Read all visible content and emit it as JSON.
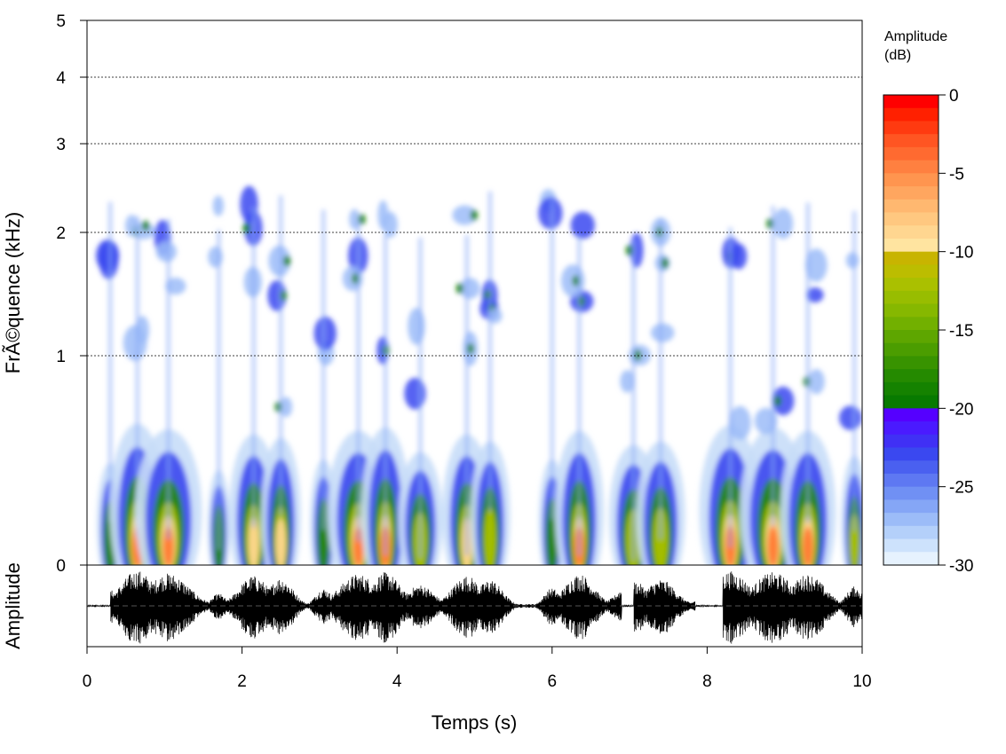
{
  "chart_data": [
    {
      "type": "heatmap",
      "subtype": "spectrogram",
      "ylabel": "FrÃ©quence (kHz)",
      "y_scale": "nonlinear (expanded at low frequencies)",
      "ylim": [
        0,
        5
      ],
      "xlim": [
        0,
        10
      ],
      "x_ticks": [
        "0",
        "2",
        "4",
        "6",
        "8",
        "10"
      ],
      "x_tick_values": [
        0,
        2,
        4,
        6,
        8,
        10
      ],
      "y_ticks": [
        "0",
        "1",
        "2",
        "3",
        "4",
        "5"
      ],
      "y_tick_values": [
        0,
        1,
        2,
        3,
        4,
        5
      ],
      "grid": "dotted horizontal lines at 1, 2, 3, 4 kHz",
      "colorbar": {
        "title_line1": "Amplitude",
        "title_line2": "(dB)",
        "range": [
          -30,
          0
        ],
        "ticks": [
          "0",
          "-5",
          "-10",
          "-15",
          "-20",
          "-25",
          "-30"
        ],
        "tick_values": [
          0,
          -5,
          -10,
          -15,
          -20,
          -25,
          -30
        ],
        "colors_high_to_low": [
          "#ff0000",
          "#ff2000",
          "#ff3a10",
          "#ff5522",
          "#ff6a30",
          "#ff8040",
          "#ff954f",
          "#ffa65f",
          "#ffb870",
          "#ffc880",
          "#ffd690",
          "#ffe4a0",
          "#c8b400",
          "#bcbd00",
          "#aac000",
          "#98bd00",
          "#86b800",
          "#72b000",
          "#5ea600",
          "#4b9d00",
          "#389300",
          "#258a00",
          "#158200",
          "#087a00",
          "#5500ff",
          "#4a1aff",
          "#4030f5",
          "#3a48f0",
          "#4a60f0",
          "#5e78f2",
          "#7090f4",
          "#85a6f6",
          "#9cbcf8",
          "#b4d0fa",
          "#cde2fc",
          "#e6f2fe"
        ]
      },
      "bursts": [
        {
          "t": 0.3,
          "w": 0.12,
          "level": 0.45
        },
        {
          "t": 0.65,
          "w": 0.25,
          "level": 1.0
        },
        {
          "t": 1.05,
          "w": 0.3,
          "level": 0.92
        },
        {
          "t": 1.7,
          "w": 0.1,
          "level": 0.35
        },
        {
          "t": 2.15,
          "w": 0.22,
          "level": 0.85
        },
        {
          "t": 2.5,
          "w": 0.18,
          "level": 0.8
        },
        {
          "t": 3.05,
          "w": 0.12,
          "level": 0.5
        },
        {
          "t": 3.5,
          "w": 0.28,
          "level": 0.9
        },
        {
          "t": 3.85,
          "w": 0.22,
          "level": 0.95
        },
        {
          "t": 4.3,
          "w": 0.2,
          "level": 0.6
        },
        {
          "t": 4.9,
          "w": 0.22,
          "level": 0.85
        },
        {
          "t": 5.2,
          "w": 0.18,
          "level": 0.75
        },
        {
          "t": 6.0,
          "w": 0.12,
          "level": 0.5
        },
        {
          "t": 6.35,
          "w": 0.22,
          "level": 0.9
        },
        {
          "t": 7.05,
          "w": 0.22,
          "level": 0.7
        },
        {
          "t": 7.4,
          "w": 0.22,
          "level": 0.75
        },
        {
          "t": 8.3,
          "w": 0.28,
          "level": 0.98
        },
        {
          "t": 8.85,
          "w": 0.3,
          "level": 0.95
        },
        {
          "t": 9.3,
          "w": 0.25,
          "level": 0.9
        },
        {
          "t": 9.9,
          "w": 0.12,
          "level": 0.55
        }
      ]
    },
    {
      "type": "line",
      "subtype": "oscillogram",
      "xlabel": "Temps (s)",
      "ylabel": "Amplitude",
      "xlim": [
        0,
        10
      ],
      "x_ticks": [
        "0",
        "2",
        "4",
        "6",
        "8",
        "10"
      ],
      "x_tick_values": [
        0,
        2,
        4,
        6,
        8,
        10
      ],
      "baseline": "dashed horizontal line at 0",
      "silent_intervals_s": [
        [
          0,
          0.3
        ],
        [
          6.9,
          7.05
        ],
        [
          7.85,
          8.2
        ]
      ]
    }
  ]
}
